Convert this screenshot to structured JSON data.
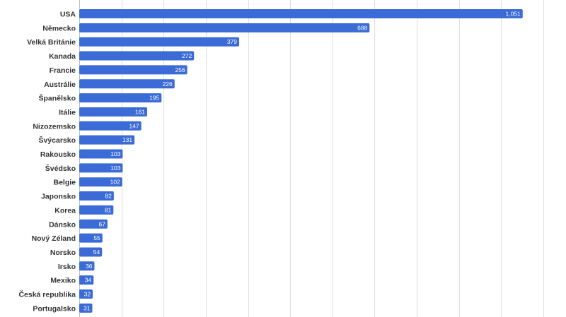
{
  "chart_data": {
    "type": "bar",
    "orientation": "horizontal",
    "title": "",
    "xlabel": "",
    "ylabel": "",
    "xlim": [
      0,
      1100
    ],
    "grid": true,
    "bar_color": "#3a6bd6",
    "categories": [
      "USA",
      "Německo",
      "Velká Británie",
      "Kanada",
      "Francie",
      "Austrálie",
      "Španělsko",
      "Itálie",
      "Nizozemsko",
      "Švýcarsko",
      "Rakousko",
      "Švédsko",
      "Belgie",
      "Japonsko",
      "Korea",
      "Dánsko",
      "Nový Zéland",
      "Norsko",
      "Irsko",
      "Mexiko",
      "Česká republika",
      "Portugalsko"
    ],
    "values": [
      1051,
      688,
      379,
      272,
      256,
      226,
      195,
      161,
      147,
      131,
      103,
      103,
      102,
      82,
      81,
      67,
      55,
      54,
      36,
      34,
      32,
      31
    ],
    "value_labels": [
      "1,051",
      "688",
      "379",
      "272",
      "256",
      "226",
      "195",
      "161",
      "147",
      "131",
      "103",
      "103",
      "102",
      "82",
      "81",
      "67",
      "55",
      "54",
      "36",
      "34",
      "32",
      "31"
    ]
  }
}
